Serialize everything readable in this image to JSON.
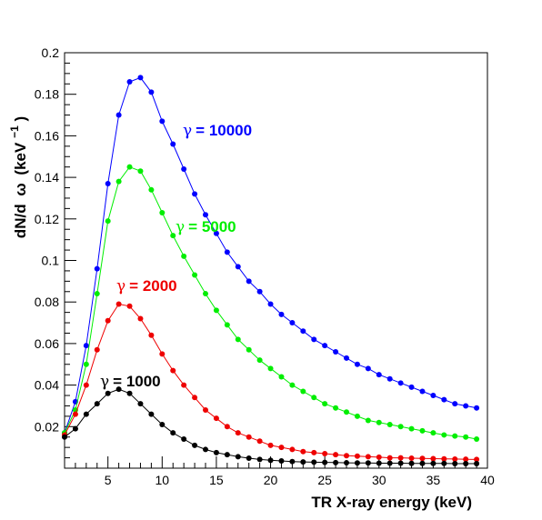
{
  "chart_data": {
    "type": "line",
    "xlabel": "TR X-ray energy (keV)",
    "ylabel_main": "dN/d",
    "ylabel_omega": "ω",
    "ylabel_unit": "(keV",
    "ylabel_exp": "−1",
    "ylabel_close": ")",
    "xlim": [
      1,
      40
    ],
    "ylim": [
      0,
      0.2
    ],
    "xticks": [
      "5",
      "10",
      "15",
      "20",
      "25",
      "30",
      "35",
      "40"
    ],
    "xtick_values": [
      5,
      10,
      15,
      20,
      25,
      30,
      35,
      40
    ],
    "yticks": [
      "0.02",
      "0.04",
      "0.06",
      "0.08",
      "0.1",
      "0.12",
      "0.14",
      "0.16",
      "0.18",
      "0.2"
    ],
    "ytick_values": [
      0.02,
      0.04,
      0.06,
      0.08,
      0.1,
      0.12,
      0.14,
      0.16,
      0.18,
      0.2
    ],
    "grid": false,
    "x": [
      1,
      2,
      3,
      4,
      5,
      6,
      7,
      8,
      9,
      10,
      11,
      12,
      13,
      14,
      15,
      16,
      17,
      18,
      19,
      20,
      21,
      22,
      23,
      24,
      25,
      26,
      27,
      28,
      29,
      30,
      31,
      32,
      33,
      34,
      35,
      36,
      37,
      38,
      39
    ],
    "series": [
      {
        "label_greek": "γ",
        "label_text": "= 10000",
        "color": "#0000ff",
        "values": [
          0.017,
          0.032,
          0.059,
          0.096,
          0.137,
          0.17,
          0.186,
          0.188,
          0.181,
          0.167,
          0.156,
          0.144,
          0.132,
          0.122,
          0.113,
          0.104,
          0.097,
          0.09,
          0.085,
          0.079,
          0.074,
          0.07,
          0.066,
          0.062,
          0.059,
          0.056,
          0.053,
          0.05,
          0.048,
          0.045,
          0.043,
          0.041,
          0.039,
          0.037,
          0.035,
          0.033,
          0.031,
          0.03,
          0.029
        ]
      },
      {
        "label_greek": "γ",
        "label_text": "= 5000",
        "color": "#00ee00",
        "values": [
          0.017,
          0.028,
          0.05,
          0.084,
          0.119,
          0.138,
          0.145,
          0.143,
          0.134,
          0.123,
          0.112,
          0.102,
          0.093,
          0.084,
          0.076,
          0.069,
          0.062,
          0.057,
          0.052,
          0.048,
          0.044,
          0.04,
          0.037,
          0.034,
          0.031,
          0.029,
          0.027,
          0.025,
          0.023,
          0.022,
          0.021,
          0.02,
          0.019,
          0.018,
          0.017,
          0.016,
          0.0155,
          0.015,
          0.014
        ]
      },
      {
        "label_greek": "γ",
        "label_text": "= 2000",
        "color": "#ee0000",
        "values": [
          0.016,
          0.026,
          0.04,
          0.057,
          0.071,
          0.079,
          0.078,
          0.072,
          0.064,
          0.055,
          0.047,
          0.04,
          0.034,
          0.028,
          0.024,
          0.02,
          0.017,
          0.015,
          0.013,
          0.011,
          0.01,
          0.009,
          0.008,
          0.0075,
          0.007,
          0.0065,
          0.006,
          0.0058,
          0.0055,
          0.0053,
          0.005,
          0.005,
          0.0048,
          0.0047,
          0.0046,
          0.0045,
          0.0044,
          0.0043,
          0.0042
        ]
      },
      {
        "label_greek": "γ",
        "label_text": "= 1000",
        "color": "#000000",
        "values": [
          0.015,
          0.019,
          0.026,
          0.031,
          0.036,
          0.038,
          0.036,
          0.031,
          0.026,
          0.021,
          0.017,
          0.014,
          0.011,
          0.009,
          0.0075,
          0.0065,
          0.0055,
          0.0048,
          0.0042,
          0.0038,
          0.0035,
          0.0032,
          0.003,
          0.0029,
          0.0028,
          0.0027,
          0.0026,
          0.0025,
          0.0025,
          0.0024,
          0.0024,
          0.0024,
          0.0023,
          0.0023,
          0.0023,
          0.0023,
          0.0022,
          0.0022,
          0.0022
        ]
      }
    ]
  }
}
